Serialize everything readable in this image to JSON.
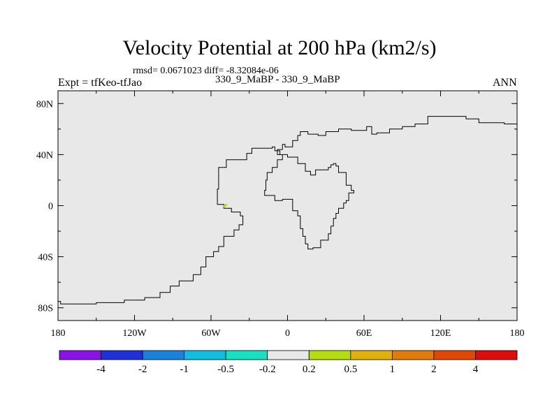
{
  "chart_data": {
    "type": "map",
    "title": "Velocity Potential at 200 hPa (km2/s)",
    "stats_line": "rmsd= 0.0671023 diff= -8.32084e-06",
    "left_label": "Expt = tfKeo-tfJao",
    "center_label": "330_9_MaBP - 330_9_MaBP",
    "right_label": "ANN",
    "x_axis": {
      "range": [
        -180,
        180
      ],
      "ticks": [
        -180,
        -120,
        -60,
        0,
        60,
        120,
        180
      ],
      "tick_labels": [
        "180",
        "120W",
        "60W",
        "0",
        "60E",
        "120E",
        "180"
      ]
    },
    "y_axis": {
      "range": [
        -90,
        90
      ],
      "ticks": [
        80,
        40,
        0,
        -40,
        -80
      ],
      "tick_labels": [
        "80N",
        "40N",
        "0",
        "40S",
        "80S"
      ]
    },
    "field_background_color": "#e8e8e8",
    "colorbar": {
      "colors": [
        "#8a12e6",
        "#2030d8",
        "#1a82dc",
        "#12bde0",
        "#18e0c0",
        "#e8e8e8",
        "#b4dc10",
        "#e0b00c",
        "#e07c0c",
        "#e04808",
        "#e00c0c"
      ],
      "labels": [
        "-4",
        "-2",
        "-1",
        "-0.5",
        "-0.2",
        "0.2",
        "0.5",
        "1",
        "2",
        "4"
      ]
    },
    "small_feature": {
      "lon": -49,
      "lat": 0,
      "color": "#b4dc10"
    },
    "coastlines": [
      [
        [
          -180,
          -75
        ],
        [
          -178,
          -75
        ],
        [
          -178,
          -77
        ],
        [
          -150,
          -77
        ],
        [
          -150,
          -76
        ],
        [
          -130,
          -76
        ],
        [
          -128,
          -74
        ],
        [
          -112,
          -72
        ],
        [
          -100,
          -68
        ],
        [
          -92,
          -63
        ],
        [
          -85,
          -59
        ],
        [
          -74,
          -54
        ],
        [
          -68,
          -48
        ],
        [
          -64,
          -40
        ],
        [
          -58,
          -36
        ],
        [
          -54,
          -32
        ],
        [
          -50,
          -24
        ],
        [
          -42,
          -19
        ],
        [
          -38,
          -15
        ],
        [
          -35,
          -8
        ],
        [
          -37,
          -5
        ],
        [
          -44,
          -2
        ],
        [
          -50,
          1
        ],
        [
          -55,
          9
        ],
        [
          -55,
          13
        ],
        [
          -54,
          30
        ],
        [
          -48,
          36
        ],
        [
          -32,
          41
        ],
        [
          -28,
          45
        ],
        [
          -12,
          46
        ],
        [
          -10,
          43
        ],
        [
          -6,
          40
        ],
        [
          0,
          38
        ],
        [
          8,
          33
        ],
        [
          14,
          27
        ],
        [
          18,
          24
        ],
        [
          22,
          28
        ],
        [
          28,
          28
        ],
        [
          32,
          30
        ],
        [
          34,
          32
        ],
        [
          36,
          33
        ],
        [
          38,
          31
        ],
        [
          40,
          26
        ],
        [
          46,
          16
        ],
        [
          50,
          12
        ],
        [
          52,
          10
        ],
        [
          48,
          4
        ],
        [
          46,
          2
        ],
        [
          44,
          -2
        ],
        [
          40,
          -6
        ],
        [
          38,
          -10
        ],
        [
          36,
          -16
        ],
        [
          34,
          -22
        ],
        [
          32,
          -27
        ],
        [
          26,
          -33
        ],
        [
          20,
          -34
        ],
        [
          16,
          -30
        ],
        [
          14,
          -24
        ],
        [
          12,
          -18
        ],
        [
          10,
          -8
        ],
        [
          8,
          -4
        ],
        [
          4,
          5
        ],
        [
          -4,
          4
        ],
        [
          -10,
          8
        ],
        [
          -18,
          12
        ],
        [
          -17,
          20
        ],
        [
          -16,
          26
        ],
        [
          -12,
          30
        ],
        [
          -8,
          36
        ],
        [
          -6,
          36
        ],
        [
          -4,
          40
        ],
        [
          -8,
          44
        ],
        [
          -4,
          48
        ],
        [
          -2,
          46
        ],
        [
          4,
          51
        ],
        [
          8,
          55
        ],
        [
          10,
          58
        ],
        [
          16,
          56
        ],
        [
          24,
          55
        ],
        [
          30,
          58
        ],
        [
          40,
          60
        ],
        [
          50,
          59
        ],
        [
          62,
          62
        ],
        [
          66,
          56
        ],
        [
          70,
          57
        ],
        [
          80,
          60
        ],
        [
          90,
          62
        ],
        [
          100,
          64
        ],
        [
          110,
          70
        ],
        [
          120,
          70
        ],
        [
          140,
          68
        ],
        [
          150,
          65
        ],
        [
          170,
          64
        ],
        [
          180,
          63
        ]
      ]
    ]
  }
}
